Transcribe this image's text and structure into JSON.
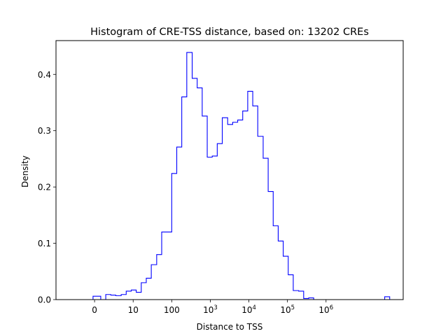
{
  "chart_data": {
    "type": "histogram",
    "title": "Histogram of CRE-TSS distance, based on: 13202 CREs",
    "xlabel": "Distance to TSS",
    "ylabel": "Density",
    "x_scale": "symlog",
    "xlim": [
      -1,
      8
    ],
    "ylim": [
      0,
      0.46
    ],
    "grid": false,
    "series_color": "#0000ff",
    "x_ticks": [
      {
        "value": 0,
        "label": "0"
      },
      {
        "value": 1,
        "label": "10"
      },
      {
        "value": 2,
        "label": "100"
      },
      {
        "value": 3,
        "label": "10^3"
      },
      {
        "value": 4,
        "label": "10^4"
      },
      {
        "value": 5,
        "label": "10^5"
      },
      {
        "value": 6,
        "label": "10^6"
      }
    ],
    "y_ticks": [
      {
        "value": 0.0,
        "label": "0.0"
      },
      {
        "value": 0.1,
        "label": "0.1"
      },
      {
        "value": 0.2,
        "label": "0.2"
      },
      {
        "value": 0.3,
        "label": "0.3"
      },
      {
        "value": 0.4,
        "label": "0.4"
      }
    ],
    "bins": {
      "edges": [
        -0.04,
        0.16,
        0.29,
        0.42,
        0.55,
        0.69,
        0.82,
        0.95,
        1.08,
        1.21,
        1.34,
        1.47,
        1.61,
        1.74,
        1.87,
        2.0,
        2.13,
        2.26,
        2.39,
        2.53,
        2.66,
        2.79,
        2.92,
        3.05,
        3.18,
        3.31,
        3.45,
        3.58,
        3.71,
        3.84,
        3.97,
        4.1,
        4.23,
        4.37,
        4.5,
        4.63,
        4.76,
        4.89,
        5.02,
        5.15,
        5.29,
        5.42,
        5.55,
        5.68,
        5.81,
        5.94,
        6.07,
        6.21,
        6.34,
        6.47,
        6.6,
        6.73,
        6.86,
        6.99,
        7.13,
        7.26,
        7.39,
        7.52,
        7.65
      ],
      "density": [
        0.006,
        0.0,
        0.009,
        0.008,
        0.007,
        0.009,
        0.015,
        0.017,
        0.013,
        0.03,
        0.038,
        0.062,
        0.08,
        0.12,
        0.12,
        0.224,
        0.271,
        0.36,
        0.439,
        0.393,
        0.376,
        0.326,
        0.253,
        0.255,
        0.277,
        0.323,
        0.311,
        0.315,
        0.319,
        0.335,
        0.37,
        0.344,
        0.29,
        0.251,
        0.192,
        0.131,
        0.104,
        0.077,
        0.044,
        0.016,
        0.015,
        0.002,
        0.003,
        0.0,
        0.0,
        0.0,
        0.0,
        0.0,
        0.0,
        0.0,
        0.0,
        0.0,
        0.0,
        0.0,
        0.0,
        0.0,
        0.0,
        0.005
      ]
    }
  }
}
